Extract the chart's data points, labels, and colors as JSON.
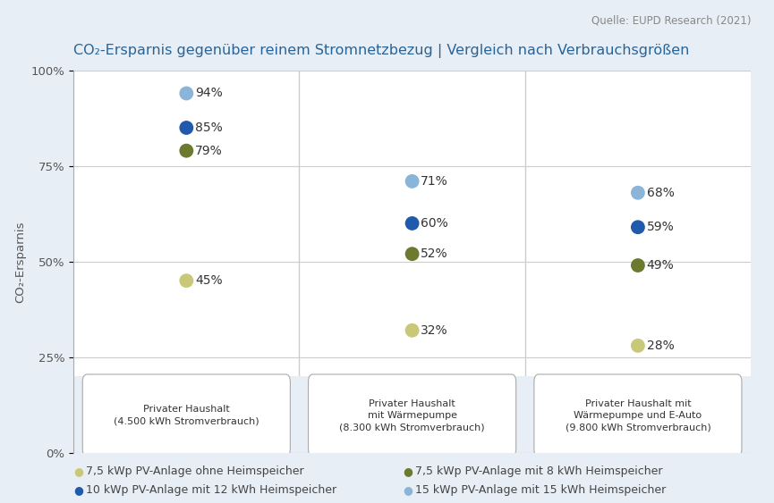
{
  "title": "CO₂-Ersparnis gegenüber reinem Stromnetzbezug | Vergleich nach Verbrauchsgrößen",
  "ylabel": "CO₂-Ersparnis",
  "source": "Quelle: EUPD Research (2021)",
  "background_color": "#e8eef5",
  "plot_bg_color": "#ffffff",
  "categories": [
    "Privater Haushalt\n(4.500 kWh Stromverbrauch)",
    "Privater Haushalt\nmit Wärmepumpe\n(8.300 kWh Stromverbrauch)",
    "Privater Haushalt mit\nWärmepumpe und E-Auto\n(9.800 kWh Stromverbrauch)"
  ],
  "x_positions": [
    1,
    2,
    3
  ],
  "series": [
    {
      "label": "7,5 kWp PV-Anlage ohne Heimspeicher",
      "color": "#c8c878",
      "values": [
        0.45,
        0.32,
        0.28
      ]
    },
    {
      "label": "7,5 kWp PV-Anlage mit 8 kWh Heimspeicher",
      "color": "#6b7a2e",
      "values": [
        0.79,
        0.52,
        0.49
      ]
    },
    {
      "label": "10 kWp PV-Anlage mit 12 kWh Heimspeicher",
      "color": "#1f5aad",
      "values": [
        0.85,
        0.6,
        0.59
      ]
    },
    {
      "label": "15 kWp PV-Anlage mit 15 kWh Heimspeicher",
      "color": "#8ab4d8",
      "values": [
        0.94,
        0.71,
        0.68
      ]
    }
  ],
  "ylim": [
    0,
    1.0
  ],
  "yticks": [
    0.0,
    0.25,
    0.5,
    0.75,
    1.0
  ],
  "ytick_labels": [
    "0%",
    "25%",
    "50%",
    "75%",
    "100%"
  ],
  "title_color": "#2a6496",
  "title_fontsize": 11.5,
  "axis_fontsize": 9.5,
  "label_fontsize": 10,
  "legend_fontsize": 9,
  "source_fontsize": 8.5,
  "marker_size": 130
}
